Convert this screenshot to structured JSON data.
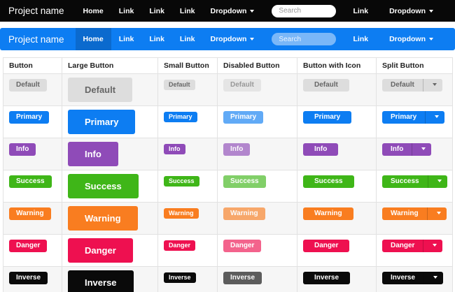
{
  "navbar_dark": {
    "brand": "Project name",
    "items": [
      "Home",
      "Link",
      "Link",
      "Link"
    ],
    "dropdown_label": "Dropdown",
    "search_placeholder": "Search",
    "right_link": "Link",
    "right_dropdown": "Dropdown"
  },
  "navbar_blue": {
    "brand": "Project name",
    "items": [
      "Home",
      "Link",
      "Link",
      "Link"
    ],
    "active_item": "Home",
    "dropdown_label": "Dropdown",
    "search_placeholder": "Search",
    "right_link": "Link",
    "right_dropdown": "Dropdown"
  },
  "table": {
    "columns": [
      "Button",
      "Large Button",
      "Small Button",
      "Disabled Button",
      "Button with Icon",
      "Split Button"
    ],
    "rows": [
      {
        "label": "Default",
        "variant": "default"
      },
      {
        "label": "Primary",
        "variant": "primary"
      },
      {
        "label": "Info",
        "variant": "info"
      },
      {
        "label": "Success",
        "variant": "success"
      },
      {
        "label": "Warning",
        "variant": "warning"
      },
      {
        "label": "Danger",
        "variant": "danger"
      },
      {
        "label": "Inverse",
        "variant": "inverse"
      }
    ]
  },
  "colors": {
    "navbar_dark_bg": "#080808",
    "navbar_blue_bg": "#0d7df2",
    "navbar_blue_active_bg": "#0b6ace",
    "variants": {
      "default": {
        "bg": "#dddddd",
        "fg": "#666666"
      },
      "primary": {
        "bg": "#0d7df2",
        "fg": "#ffffff"
      },
      "info": {
        "bg": "#8f4bb8",
        "fg": "#ffffff"
      },
      "success": {
        "bg": "#3fb618",
        "fg": "#ffffff"
      },
      "warning": {
        "bg": "#f97d20",
        "fg": "#ffffff"
      },
      "danger": {
        "bg": "#ee1050",
        "fg": "#ffffff"
      },
      "inverse": {
        "bg": "#0a0a0a",
        "fg": "#ffffff"
      }
    }
  }
}
